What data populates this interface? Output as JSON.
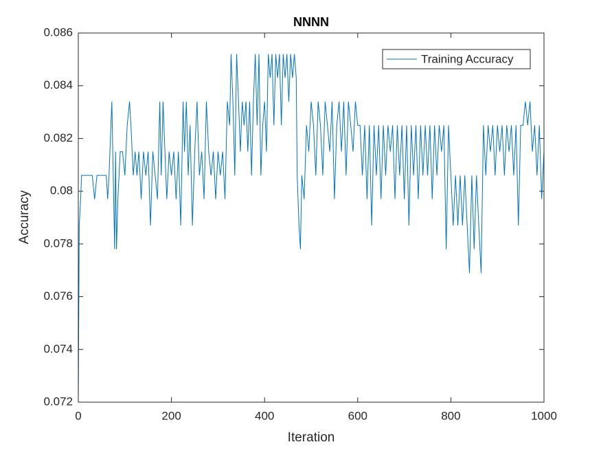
{
  "chart_data": {
    "type": "line",
    "title": "NNNN",
    "x_label": "Iteration",
    "y_label": "Accuracy",
    "xlim": [
      0,
      1000
    ],
    "ylim": [
      0.072,
      0.086
    ],
    "xticks": [
      0,
      200,
      400,
      600,
      800,
      1000
    ],
    "yticks": [
      0.072,
      0.074,
      0.076,
      0.078,
      0.08,
      0.082,
      0.084,
      0.086
    ],
    "grid": false,
    "legend": "upper right",
    "x": [
      0,
      2,
      5,
      7,
      10,
      20,
      30,
      35,
      40,
      50,
      60,
      63,
      66,
      70,
      72,
      75,
      78,
      80,
      82,
      85,
      90,
      95,
      100,
      105,
      110,
      113,
      118,
      122,
      126,
      130,
      135,
      140,
      145,
      150,
      155,
      160,
      165,
      170,
      175,
      178,
      182,
      186,
      190,
      195,
      200,
      205,
      210,
      215,
      220,
      225,
      228,
      232,
      236,
      240,
      245,
      250,
      255,
      260,
      265,
      270,
      275,
      280,
      285,
      290,
      295,
      300,
      305,
      310,
      315,
      320,
      325,
      328,
      332,
      336,
      340,
      344,
      348,
      352,
      356,
      360,
      364,
      368,
      372,
      376,
      380,
      384,
      388,
      392,
      396,
      400,
      404,
      408,
      412,
      416,
      420,
      424,
      428,
      432,
      436,
      440,
      444,
      448,
      452,
      456,
      460,
      464,
      468,
      470,
      474,
      477,
      480,
      485,
      490,
      495,
      500,
      505,
      510,
      515,
      520,
      525,
      530,
      535,
      540,
      545,
      550,
      555,
      560,
      565,
      570,
      575,
      580,
      585,
      590,
      595,
      600,
      605,
      610,
      615,
      620,
      625,
      630,
      635,
      640,
      645,
      650,
      655,
      660,
      665,
      670,
      675,
      680,
      685,
      690,
      695,
      700,
      705,
      710,
      715,
      720,
      725,
      730,
      735,
      740,
      745,
      750,
      755,
      760,
      765,
      770,
      775,
      780,
      785,
      790,
      795,
      800,
      805,
      810,
      815,
      820,
      825,
      830,
      835,
      840,
      845,
      850,
      855,
      860,
      865,
      870,
      875,
      880,
      885,
      890,
      895,
      900,
      905,
      910,
      915,
      920,
      925,
      930,
      935,
      940,
      945,
      950,
      955,
      960,
      965,
      970,
      975,
      980,
      985,
      990,
      995,
      1000
    ],
    "series": [
      {
        "name": "Training Accuracy",
        "color": "#0072BD",
        "values": [
          0.072,
          0.0787,
          0.0797,
          0.0806,
          0.0806,
          0.0806,
          0.0806,
          0.0797,
          0.0806,
          0.0806,
          0.0806,
          0.0797,
          0.0806,
          0.0825,
          0.0834,
          0.0806,
          0.0778,
          0.0815,
          0.0778,
          0.0797,
          0.0815,
          0.0815,
          0.0806,
          0.0825,
          0.0834,
          0.0825,
          0.0806,
          0.0815,
          0.0806,
          0.0815,
          0.0797,
          0.0815,
          0.0806,
          0.0815,
          0.0787,
          0.0815,
          0.0806,
          0.0797,
          0.0834,
          0.0806,
          0.0834,
          0.0815,
          0.0797,
          0.0815,
          0.0806,
          0.0815,
          0.0797,
          0.0815,
          0.0787,
          0.0834,
          0.0815,
          0.0834,
          0.0806,
          0.0825,
          0.0787,
          0.0815,
          0.0834,
          0.0806,
          0.0815,
          0.0797,
          0.0834,
          0.0815,
          0.0806,
          0.0815,
          0.0797,
          0.0815,
          0.0806,
          0.0815,
          0.0797,
          0.0834,
          0.0825,
          0.0852,
          0.0834,
          0.0806,
          0.0852,
          0.0834,
          0.0815,
          0.0834,
          0.0825,
          0.0834,
          0.0815,
          0.0834,
          0.0806,
          0.0834,
          0.0852,
          0.0825,
          0.0852,
          0.0806,
          0.0825,
          0.0834,
          0.0815,
          0.0852,
          0.0843,
          0.0852,
          0.0825,
          0.0852,
          0.0843,
          0.0852,
          0.0825,
          0.0852,
          0.0843,
          0.0852,
          0.0834,
          0.0852,
          0.0843,
          0.0852,
          0.0843,
          0.0806,
          0.0787,
          0.0778,
          0.0806,
          0.0797,
          0.0825,
          0.0815,
          0.0834,
          0.0825,
          0.0806,
          0.0834,
          0.0825,
          0.0806,
          0.0834,
          0.0825,
          0.0815,
          0.0834,
          0.0797,
          0.0825,
          0.0834,
          0.0815,
          0.0834,
          0.0806,
          0.0834,
          0.0825,
          0.0815,
          0.0834,
          0.0825,
          0.0825,
          0.0806,
          0.0825,
          0.0797,
          0.0825,
          0.0787,
          0.0825,
          0.0806,
          0.0825,
          0.0797,
          0.0825,
          0.0806,
          0.0825,
          0.0815,
          0.0825,
          0.0797,
          0.0825,
          0.0806,
          0.0825,
          0.0797,
          0.0825,
          0.0787,
          0.0825,
          0.0806,
          0.0825,
          0.0797,
          0.0825,
          0.0806,
          0.0825,
          0.0806,
          0.0825,
          0.0797,
          0.0825,
          0.0806,
          0.0825,
          0.0815,
          0.0825,
          0.0778,
          0.0825,
          0.0806,
          0.0787,
          0.0806,
          0.0787,
          0.0806,
          0.0787,
          0.0806,
          0.0787,
          0.0769,
          0.0806,
          0.0778,
          0.0806,
          0.0787,
          0.0769,
          0.0825,
          0.0806,
          0.0825,
          0.0815,
          0.0825,
          0.0806,
          0.0825,
          0.0815,
          0.0825,
          0.0806,
          0.0825,
          0.0815,
          0.0825,
          0.0806,
          0.0825,
          0.0787,
          0.0825,
          0.0825,
          0.0834,
          0.0825,
          0.0834,
          0.0815,
          0.0825,
          0.0806,
          0.0825,
          0.0797,
          0.0815
        ]
      }
    ]
  }
}
